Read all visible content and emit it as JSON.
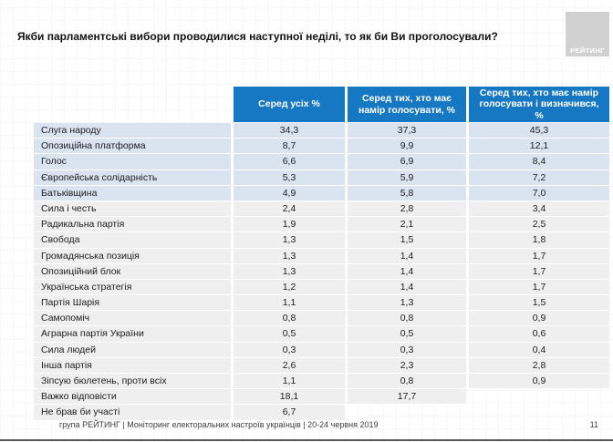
{
  "slide": {
    "title": "Якби парламентські вибори проводилися наступної неділі, то як би Ви проголосували?",
    "logo_text": "РЕЙТИНГ",
    "footer": "група РЕЙТИНГ | Моніторинг електоральних настроїв українців | 20-24 червня 2019",
    "page_number": "11"
  },
  "colors": {
    "header_blue": "#1678c2",
    "highlight_row_blue": "#dae4f1",
    "row_gray": "#efeff0",
    "logo_gray": "#d1d1d1"
  },
  "chart_data": {
    "type": "table",
    "title": "Якби парламентські вибори проводилися наступної неділі, то як би Ви проголосували?",
    "column_headers": [
      "Серед усіх %",
      "Серед тих, хто має намір голосувати, %",
      "Серед тих, хто має намір голосувати і визначився, %"
    ],
    "rows": [
      {
        "label": "Слуга народу",
        "values": [
          "34,3",
          "37,3",
          "45,3"
        ],
        "style": "blue"
      },
      {
        "label": "Опозиційна платформа",
        "values": [
          "8,7",
          "9,9",
          "12,1"
        ],
        "style": "blue"
      },
      {
        "label": "Голос",
        "values": [
          "6,6",
          "6,9",
          "8,4"
        ],
        "style": "blue"
      },
      {
        "label": "Європейська солідарність",
        "values": [
          "5,3",
          "5,9",
          "7,2"
        ],
        "style": "blue"
      },
      {
        "label": "Батьківщина",
        "values": [
          "4,9",
          "5,8",
          "7,0"
        ],
        "style": "blue"
      },
      {
        "label": "Сила і честь",
        "values": [
          "2,4",
          "2,8",
          "3,4"
        ],
        "style": "gray"
      },
      {
        "label": "Радикальна партія",
        "values": [
          "1,9",
          "2,1",
          "2,5"
        ],
        "style": "gray"
      },
      {
        "label": "Свобода",
        "values": [
          "1,3",
          "1,5",
          "1,8"
        ],
        "style": "gray"
      },
      {
        "label": "Громадянська позиція",
        "values": [
          "1,3",
          "1,4",
          "1,7"
        ],
        "style": "gray"
      },
      {
        "label": "Опозиційний блок",
        "values": [
          "1,3",
          "1,4",
          "1,7"
        ],
        "style": "gray"
      },
      {
        "label": "Українська стратегія",
        "values": [
          "1,2",
          "1,4",
          "1,7"
        ],
        "style": "gray"
      },
      {
        "label": "Партія Шарія",
        "values": [
          "1,1",
          "1,3",
          "1,5"
        ],
        "style": "gray"
      },
      {
        "label": "Самопоміч",
        "values": [
          "0,8",
          "0,8",
          "0,9"
        ],
        "style": "gray"
      },
      {
        "label": "Аграрна партія України",
        "values": [
          "0,5",
          "0,5",
          "0,6"
        ],
        "style": "gray"
      },
      {
        "label": "Сила людей",
        "values": [
          "0,3",
          "0,3",
          "0,4"
        ],
        "style": "gray"
      },
      {
        "label": "Інша партія",
        "values": [
          "2,6",
          "2,3",
          "2,8"
        ],
        "style": "gray"
      },
      {
        "label": "Зіпсую бюлетень, проти всіх",
        "values": [
          "1,1",
          "0,8",
          "0,9"
        ],
        "style": "gray"
      },
      {
        "label": "Важко відповісти",
        "values": [
          "18,1",
          "17,7",
          null
        ],
        "style": "gray"
      },
      {
        "label": "Не брав би участі",
        "values": [
          "6,7",
          null,
          null
        ],
        "style": "gray"
      }
    ]
  }
}
